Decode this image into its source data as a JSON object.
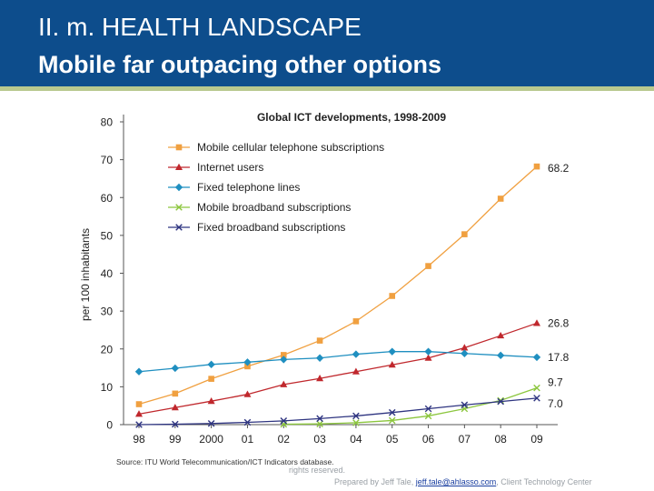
{
  "header": {
    "title_line1": "II. m. HEALTH LANDSCAPE",
    "title_line2": "Mobile far outpacing other options"
  },
  "chart_data": {
    "type": "line",
    "title": "Global ICT developments, 1998-2009",
    "ylabel": "per 100 inhabitants",
    "xlabel": "",
    "categories": [
      "98",
      "99",
      "2000",
      "01",
      "02",
      "03",
      "04",
      "05",
      "06",
      "07",
      "08",
      "09"
    ],
    "ylim": [
      0,
      80
    ],
    "yticks": [
      "0",
      "10",
      "20",
      "30",
      "40",
      "50",
      "60",
      "70",
      "80"
    ],
    "grid": false,
    "legend_position": "top-left",
    "source": "Source: ITU World Telecommunication/ICT Indicators database.",
    "series": [
      {
        "name": "Mobile cellular telephone subscriptions",
        "color": "#f0a040",
        "marker": "square",
        "values": [
          5.4,
          8.2,
          12.1,
          15.4,
          18.4,
          22.2,
          27.3,
          34.0,
          41.9,
          50.3,
          59.7,
          68.2
        ],
        "end_label": "68.2"
      },
      {
        "name": "Internet users",
        "color": "#c0282d",
        "marker": "triangle",
        "values": [
          2.8,
          4.5,
          6.2,
          8.0,
          10.6,
          12.2,
          14.0,
          15.8,
          17.6,
          20.3,
          23.5,
          26.8
        ],
        "end_label": "26.8"
      },
      {
        "name": "Fixed telephone lines",
        "color": "#1f8fc0",
        "marker": "diamond",
        "values": [
          14.0,
          14.9,
          15.9,
          16.5,
          17.2,
          17.6,
          18.6,
          19.3,
          19.3,
          18.8,
          18.3,
          17.8
        ],
        "end_label": "17.8"
      },
      {
        "name": "Mobile broadband subscriptions",
        "color": "#8cc63e",
        "marker": "x",
        "values": [
          null,
          null,
          null,
          null,
          0.1,
          0.2,
          0.5,
          1.1,
          2.3,
          4.2,
          6.4,
          9.7
        ],
        "end_label": "9.7"
      },
      {
        "name": "Fixed broadband subscriptions",
        "color": "#2e3480",
        "marker": "x",
        "values": [
          0.0,
          0.1,
          0.3,
          0.6,
          1.0,
          1.6,
          2.3,
          3.2,
          4.2,
          5.2,
          6.1,
          7.0
        ],
        "end_label": "7.0"
      }
    ]
  },
  "footer": {
    "rights": "rights reserved.",
    "prepared_prefix": "Prepared by Jeff Tale, ",
    "prepared_email": "jeff.tale@ahlasso.com",
    "prepared_suffix": ", Client Technology Center"
  }
}
